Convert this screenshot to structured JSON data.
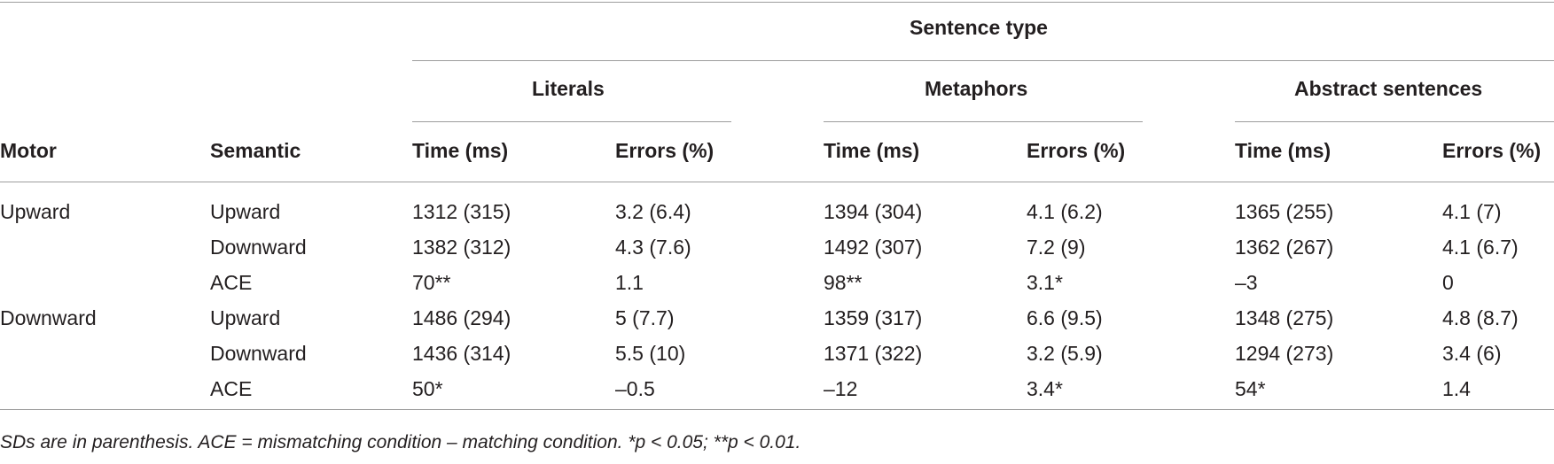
{
  "table": {
    "group_header": "Sentence type",
    "types": [
      "Literals",
      "Metaphors",
      "Abstract sentences"
    ],
    "row_headers": [
      "Motor",
      "Semantic"
    ],
    "col_headers": [
      "Time (ms)",
      "Errors (%)",
      "Time (ms)",
      "Errors (%)",
      "Time (ms)",
      "Errors (%)"
    ],
    "rows": [
      {
        "motor": "Upward",
        "semantic": "Upward",
        "values": [
          "1312 (315)",
          "3.2 (6.4)",
          "1394 (304)",
          "4.1 (6.2)",
          "1365 (255)",
          "4.1 (7)"
        ]
      },
      {
        "motor": "",
        "semantic": "Downward",
        "values": [
          "1382 (312)",
          "4.3 (7.6)",
          "1492 (307)",
          "7.2 (9)",
          "1362 (267)",
          "4.1 (6.7)"
        ]
      },
      {
        "motor": "",
        "semantic": "ACE",
        "values": [
          "70**",
          "1.1",
          "98**",
          "3.1*",
          "–3",
          "0"
        ]
      },
      {
        "motor": "Downward",
        "semantic": "Upward",
        "values": [
          "1486 (294)",
          "5 (7.7)",
          "1359 (317)",
          "6.6 (9.5)",
          "1348 (275)",
          "4.8 (8.7)"
        ]
      },
      {
        "motor": "",
        "semantic": "Downward",
        "values": [
          "1436 (314)",
          "5.5 (10)",
          "1371 (322)",
          "3.2 (5.9)",
          "1294 (273)",
          "3.4 (6)"
        ]
      },
      {
        "motor": "",
        "semantic": "ACE",
        "values": [
          "50*",
          "–0.5",
          "–12",
          "3.4*",
          "54*",
          "1.4"
        ]
      }
    ],
    "footnote": "SDs are in parenthesis. ACE = mismatching condition – matching condition. *p < 0.05; **p < 0.01."
  }
}
